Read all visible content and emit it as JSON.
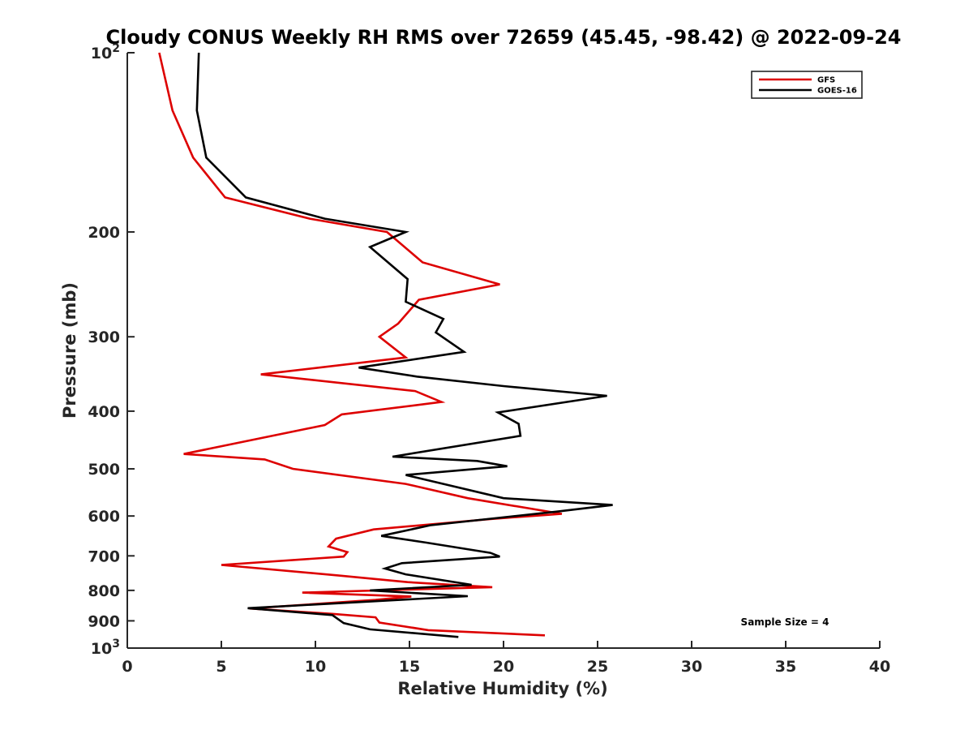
{
  "chart_data": {
    "type": "line",
    "title": "Cloudy CONUS Weekly RH RMS over 72659 (45.45, -98.42) @ 2022-09-24",
    "xlabel": "Relative Humidity (%)",
    "ylabel": "Pressure (mb)",
    "xlim": [
      0,
      40
    ],
    "ylim": [
      100,
      1000
    ],
    "yscale": "log",
    "y_reversed": true,
    "x_ticks": [
      "0",
      "5",
      "10",
      "15",
      "20",
      "25",
      "30",
      "35",
      "40"
    ],
    "y_ticks": [
      {
        "value": 100,
        "base": "10",
        "exp": "2"
      },
      {
        "value": 200,
        "label": "200"
      },
      {
        "value": 300,
        "label": "300"
      },
      {
        "value": 400,
        "label": "400"
      },
      {
        "value": 500,
        "label": "500"
      },
      {
        "value": 600,
        "label": "600"
      },
      {
        "value": 700,
        "label": "700"
      },
      {
        "value": 800,
        "label": "800"
      },
      {
        "value": 900,
        "label": "900"
      },
      {
        "value": 1000,
        "base": "10",
        "exp": "3"
      }
    ],
    "legend_position": "top-right",
    "grid": false,
    "series": [
      {
        "name": "GFS",
        "color": "#dd0000",
        "points": [
          [
            1.7,
            100
          ],
          [
            2.4,
            125
          ],
          [
            3.5,
            150
          ],
          [
            5.2,
            175
          ],
          [
            9.7,
            190
          ],
          [
            13.8,
            200
          ],
          [
            15.7,
            225
          ],
          [
            19.8,
            245
          ],
          [
            15.5,
            260
          ],
          [
            14.4,
            285
          ],
          [
            13.4,
            300
          ],
          [
            14.8,
            325
          ],
          [
            7.1,
            347
          ],
          [
            15.3,
            370
          ],
          [
            16.7,
            386
          ],
          [
            11.4,
            405
          ],
          [
            10.5,
            422
          ],
          [
            3.0,
            472
          ],
          [
            7.3,
            482
          ],
          [
            8.8,
            500
          ],
          [
            14.8,
            530
          ],
          [
            18.1,
            560
          ],
          [
            23.1,
            595
          ],
          [
            19.3,
            607
          ],
          [
            13.1,
            632
          ],
          [
            11.1,
            655
          ],
          [
            10.7,
            675
          ],
          [
            11.7,
            690
          ],
          [
            11.5,
            702
          ],
          [
            5.0,
            725
          ],
          [
            11.2,
            755
          ],
          [
            14.9,
            775
          ],
          [
            19.4,
            790
          ],
          [
            9.3,
            807
          ],
          [
            15.1,
            819
          ],
          [
            13.2,
            830
          ],
          [
            6.5,
            858
          ],
          [
            10.9,
            876
          ],
          [
            13.2,
            888
          ],
          [
            13.4,
            906
          ],
          [
            16.0,
            933
          ],
          [
            22.2,
            952
          ]
        ]
      },
      {
        "name": "GOES-16",
        "color": "#000000",
        "points": [
          [
            3.8,
            100
          ],
          [
            3.7,
            125
          ],
          [
            4.2,
            150
          ],
          [
            6.3,
            175
          ],
          [
            10.5,
            190
          ],
          [
            14.8,
            200
          ],
          [
            12.9,
            212
          ],
          [
            14.9,
            240
          ],
          [
            14.8,
            262
          ],
          [
            16.8,
            280
          ],
          [
            16.4,
            295
          ],
          [
            17.9,
            318
          ],
          [
            12.3,
            338
          ],
          [
            15.4,
            350
          ],
          [
            20.0,
            363
          ],
          [
            25.5,
            377
          ],
          [
            19.7,
            402
          ],
          [
            20.8,
            420
          ],
          [
            20.9,
            440
          ],
          [
            14.1,
            477
          ],
          [
            18.6,
            485
          ],
          [
            20.2,
            495
          ],
          [
            14.8,
            512
          ],
          [
            20.0,
            560
          ],
          [
            25.8,
            575
          ],
          [
            22.8,
            590
          ],
          [
            16.1,
            622
          ],
          [
            13.5,
            648
          ],
          [
            15.9,
            665
          ],
          [
            19.3,
            692
          ],
          [
            19.8,
            702
          ],
          [
            14.6,
            720
          ],
          [
            13.7,
            735
          ],
          [
            14.8,
            752
          ],
          [
            18.3,
            783
          ],
          [
            12.9,
            800
          ],
          [
            18.1,
            818
          ],
          [
            6.4,
            857
          ],
          [
            10.9,
            880
          ],
          [
            11.5,
            908
          ],
          [
            12.9,
            930
          ],
          [
            17.6,
            958
          ]
        ]
      }
    ],
    "annotations": [
      {
        "text": "Sample Size = 4"
      }
    ]
  }
}
